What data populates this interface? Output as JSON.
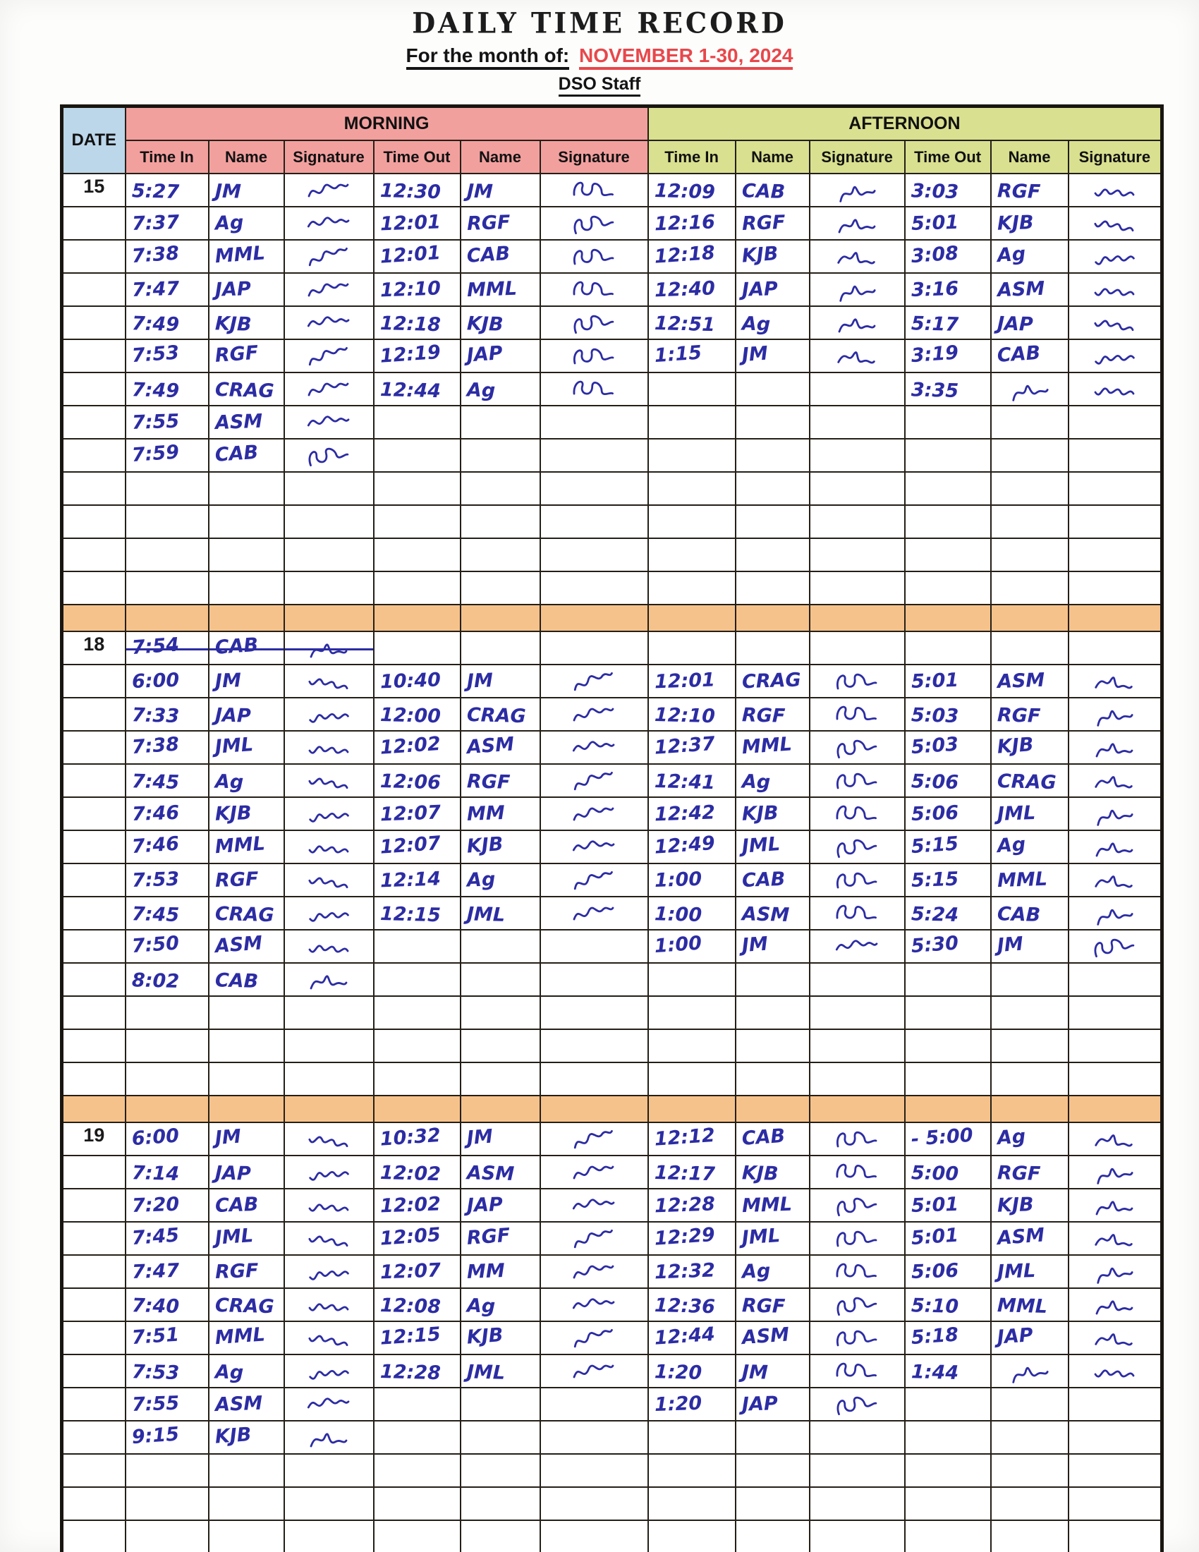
{
  "header": {
    "title": "DAILY TIME RECORD",
    "month_label": "For the month of:",
    "month_value": "NOVEMBER 1-30, 2024",
    "staff": "DSO Staff"
  },
  "table": {
    "date_header": "DATE",
    "session_headers": {
      "morning": "MORNING",
      "afternoon": "AFTERNOON"
    },
    "columns": [
      "Time In",
      "Name",
      "Signature",
      "Time Out",
      "Name",
      "Signature"
    ],
    "colors": {
      "date_header_bg": "#bcd6ea",
      "morning_bg": "#f2a09e",
      "afternoon_bg": "#d9e08f",
      "separator_bg": "#f6c28b",
      "ink": "#2c2ca4",
      "month_accent": "#e8474b"
    },
    "signature_token": "sig",
    "blocks": [
      {
        "date": "15",
        "empty_rows": 4,
        "rows": [
          {
            "cells": [
              "5:27",
              "JM",
              "sig",
              "12:30",
              "JM",
              "sig",
              "12:09",
              "CAB",
              "sig",
              "3:03",
              "RGF",
              "sig"
            ]
          },
          {
            "cells": [
              "7:37",
              "Ag",
              "sig",
              "12:01",
              "RGF",
              "sig",
              "12:16",
              "RGF",
              "sig",
              "5:01",
              "KJB",
              "sig"
            ]
          },
          {
            "cells": [
              "7:38",
              "MML",
              "sig",
              "12:01",
              "CAB",
              "sig",
              "12:18",
              "KJB",
              "sig",
              "3:08",
              "Ag",
              "sig"
            ]
          },
          {
            "cells": [
              "7:47",
              "JAP",
              "sig",
              "12:10",
              "MML",
              "sig",
              "12:40",
              "JAP",
              "sig",
              "3:16",
              "ASM",
              "sig"
            ]
          },
          {
            "cells": [
              "7:49",
              "KJB",
              "sig",
              "12:18",
              "KJB",
              "sig",
              "12:51",
              "Ag",
              "sig",
              "5:17",
              "JAP",
              "sig"
            ]
          },
          {
            "cells": [
              "7:53",
              "RGF",
              "sig",
              "12:19",
              "JAP",
              "sig",
              "1:15",
              "JM",
              "sig",
              "3:19",
              "CAB",
              "sig"
            ]
          },
          {
            "cells": [
              "7:49",
              "CRAG",
              "sig",
              "12:44",
              "Ag",
              "sig",
              "",
              "",
              "",
              "3:35",
              "sig",
              "sig"
            ]
          },
          {
            "cells": [
              "7:55",
              "ASM",
              "sig",
              "",
              "",
              "",
              "",
              "",
              "",
              "",
              "",
              ""
            ]
          },
          {
            "cells": [
              "7:59",
              "CAB",
              "sig",
              "",
              "",
              "",
              "",
              "",
              "",
              "",
              "",
              ""
            ]
          }
        ]
      },
      {
        "date": "18",
        "empty_rows": 3,
        "rows": [
          {
            "strike": true,
            "cells": [
              "7:54",
              "CAB",
              "sig",
              "",
              "",
              "",
              "",
              "",
              "",
              "",
              "",
              ""
            ]
          },
          {
            "cells": [
              "6:00",
              "JM",
              "sig",
              "10:40",
              "JM",
              "sig",
              "12:01",
              "CRAG",
              "sig",
              "5:01",
              "ASM",
              "sig"
            ]
          },
          {
            "cells": [
              "7:33",
              "JAP",
              "sig",
              "12:00",
              "CRAG",
              "sig",
              "12:10",
              "RGF",
              "sig",
              "5:03",
              "RGF",
              "sig"
            ]
          },
          {
            "cells": [
              "7:38",
              "JML",
              "sig",
              "12:02",
              "ASM",
              "sig",
              "12:37",
              "MML",
              "sig",
              "5:03",
              "KJB",
              "sig"
            ]
          },
          {
            "cells": [
              "7:45",
              "Ag",
              "sig",
              "12:06",
              "RGF",
              "sig",
              "12:41",
              "Ag",
              "sig",
              "5:06",
              "CRAG",
              "sig"
            ]
          },
          {
            "cells": [
              "7:46",
              "KJB",
              "sig",
              "12:07",
              "MM",
              "sig",
              "12:42",
              "KJB",
              "sig",
              "5:06",
              "JML",
              "sig"
            ]
          },
          {
            "cells": [
              "7:46",
              "MML",
              "sig",
              "12:07",
              "KJB",
              "sig",
              "12:49",
              "JML",
              "sig",
              "5:15",
              "Ag",
              "sig"
            ]
          },
          {
            "cells": [
              "7:53",
              "RGF",
              "sig",
              "12:14",
              "Ag",
              "sig",
              "1:00",
              "CAB",
              "sig",
              "5:15",
              "MML",
              "sig"
            ]
          },
          {
            "cells": [
              "7:45",
              "CRAG",
              "sig",
              "12:15",
              "JML",
              "sig",
              "1:00",
              "ASM",
              "sig",
              "5:24",
              "CAB",
              "sig"
            ]
          },
          {
            "cells": [
              "7:50",
              "ASM",
              "sig",
              "",
              "",
              "",
              "1:00",
              "JM",
              "sig",
              "5:30",
              "JM",
              "sig"
            ]
          },
          {
            "cells": [
              "8:02",
              "CAB",
              "sig",
              "",
              "",
              "",
              "",
              "",
              "",
              "",
              "",
              ""
            ]
          }
        ]
      },
      {
        "date": "19",
        "empty_rows": 5,
        "rows": [
          {
            "cells": [
              "6:00",
              "JM",
              "sig",
              "10:32",
              "JM",
              "sig",
              "12:12",
              "CAB",
              "sig",
              "- 5:00",
              "Ag",
              "sig"
            ]
          },
          {
            "cells": [
              "7:14",
              "JAP",
              "sig",
              "12:02",
              "ASM",
              "sig",
              "12:17",
              "KJB",
              "sig",
              "5:00",
              "RGF",
              "sig"
            ]
          },
          {
            "cells": [
              "7:20",
              "CAB",
              "sig",
              "12:02",
              "JAP",
              "sig",
              "12:28",
              "MML",
              "sig",
              "5:01",
              "KJB",
              "sig"
            ]
          },
          {
            "cells": [
              "7:45",
              "JML",
              "sig",
              "12:05",
              "RGF",
              "sig",
              "12:29",
              "JML",
              "sig",
              "5:01",
              "ASM",
              "sig"
            ]
          },
          {
            "cells": [
              "7:47",
              "RGF",
              "sig",
              "12:07",
              "MM",
              "sig",
              "12:32",
              "Ag",
              "sig",
              "5:06",
              "JML",
              "sig"
            ]
          },
          {
            "cells": [
              "7:40",
              "CRAG",
              "sig",
              "12:08",
              "Ag",
              "sig",
              "12:36",
              "RGF",
              "sig",
              "5:10",
              "MML",
              "sig"
            ]
          },
          {
            "cells": [
              "7:51",
              "MML",
              "sig",
              "12:15",
              "KJB",
              "sig",
              "12:44",
              "ASM",
              "sig",
              "5:18",
              "JAP",
              "sig"
            ]
          },
          {
            "cells": [
              "7:53",
              "Ag",
              "sig",
              "12:28",
              "JML",
              "sig",
              "1:20",
              "JM",
              "sig",
              "1:44",
              "sig",
              "sig"
            ]
          },
          {
            "cells": [
              "7:55",
              "ASM",
              "sig",
              "",
              "",
              "",
              "1:20",
              "JAP",
              "sig",
              "",
              "",
              ""
            ]
          },
          {
            "cells": [
              "9:15",
              "KJB",
              "sig",
              "",
              "",
              "",
              "",
              "",
              "",
              "",
              "",
              ""
            ]
          }
        ]
      }
    ]
  }
}
